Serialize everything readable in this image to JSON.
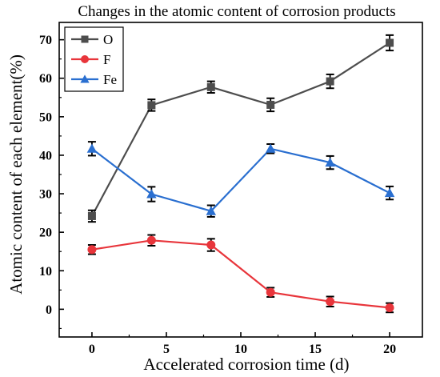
{
  "chart_data": {
    "type": "line",
    "title": "Changes in the atomic content of corrosion products",
    "xlabel": "Accelerated corrosion time (d)",
    "ylabel": "Atomic content of each element(%)",
    "xlim": [
      -2.2,
      22.2
    ],
    "ylim": [
      -7.2,
      74.5
    ],
    "xticks": [
      0,
      5,
      10,
      15,
      20
    ],
    "yticks": [
      0,
      10,
      20,
      30,
      40,
      50,
      60,
      70
    ],
    "x": [
      0,
      4,
      8,
      12,
      16,
      20
    ],
    "legend_position": "top-left",
    "grid": false,
    "series": [
      {
        "name": "O",
        "color": "#4d4d4d",
        "marker": "square",
        "values": [
          24.2,
          53.0,
          57.7,
          53.1,
          59.2,
          69.2
        ],
        "errors": [
          1.5,
          1.5,
          1.5,
          1.7,
          1.8,
          2.0
        ]
      },
      {
        "name": "F",
        "color": "#e8353b",
        "marker": "circle",
        "values": [
          15.5,
          17.9,
          16.7,
          4.4,
          2.0,
          0.4
        ],
        "errors": [
          1.2,
          1.4,
          1.6,
          1.2,
          1.3,
          1.2
        ]
      },
      {
        "name": "Fe",
        "color": "#2a6fd0",
        "marker": "triangle",
        "values": [
          41.7,
          29.9,
          25.5,
          41.7,
          38.1,
          30.2
        ],
        "errors": [
          1.8,
          1.9,
          1.5,
          1.2,
          1.7,
          1.7
        ]
      }
    ]
  }
}
